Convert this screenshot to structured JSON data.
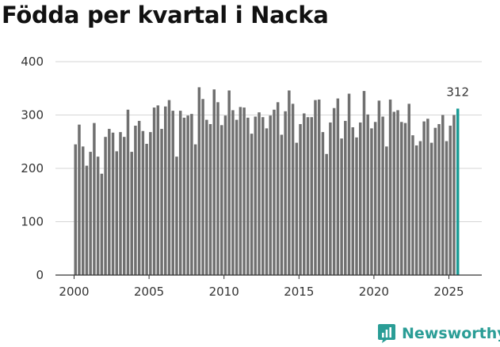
{
  "chart_data": {
    "type": "bar",
    "title": "Födda per kvartal i Nacka",
    "xlabel": "",
    "ylabel": "",
    "ylim": [
      0,
      400
    ],
    "yticks": [
      0,
      100,
      200,
      300,
      400
    ],
    "xticks": [
      "2000",
      "2005",
      "2010",
      "2015",
      "2020",
      "2025"
    ],
    "x_start_year": 2000,
    "grid": true,
    "bar_color": "#707070",
    "highlight_color": "#1a9c96",
    "last_label": "312",
    "values": [
      245,
      282,
      241,
      205,
      231,
      285,
      222,
      190,
      259,
      274,
      267,
      232,
      268,
      259,
      310,
      231,
      280,
      289,
      270,
      246,
      268,
      314,
      318,
      274,
      316,
      328,
      308,
      222,
      308,
      295,
      299,
      302,
      245,
      352,
      330,
      291,
      283,
      348,
      324,
      281,
      299,
      346,
      309,
      291,
      315,
      314,
      295,
      265,
      297,
      305,
      296,
      275,
      299,
      310,
      324,
      263,
      307,
      346,
      321,
      248,
      283,
      303,
      296,
      296,
      328,
      329,
      268,
      227,
      286,
      313,
      331,
      256,
      289,
      340,
      277,
      258,
      286,
      345,
      301,
      275,
      287,
      327,
      297,
      241,
      329,
      306,
      309,
      287,
      285,
      321,
      262,
      243,
      251,
      288,
      293,
      248,
      276,
      283,
      300,
      251,
      280,
      300,
      312
    ]
  },
  "brand": {
    "name": "Newsworthy",
    "color": "#2a9d96",
    "icon": "newsworthy-logo-icon"
  }
}
